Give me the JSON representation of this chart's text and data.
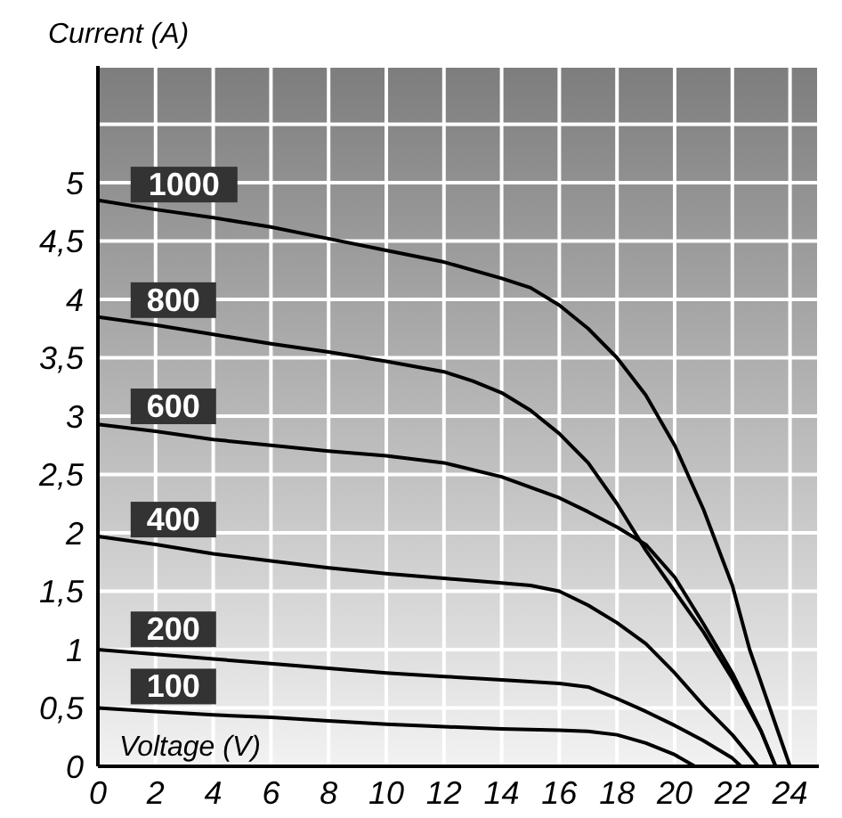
{
  "chart_data": {
    "type": "line",
    "xlabel": "Voltage (V)",
    "ylabel": "Current (A)",
    "xlim": [
      0,
      25
    ],
    "xticks": [
      0,
      2,
      4,
      6,
      8,
      10,
      12,
      14,
      16,
      18,
      20,
      22,
      24
    ],
    "ylim": [
      0,
      6
    ],
    "yticks": [
      0,
      {
        "value": 0.5,
        "label": "0,5"
      },
      1,
      {
        "value": 1.5,
        "label": "1,5"
      },
      2,
      {
        "value": 2.5,
        "label": "2,5"
      },
      3,
      {
        "value": 3.5,
        "label": "3,5"
      },
      4,
      {
        "value": 4.5,
        "label": "4,5"
      },
      5,
      {
        "value": 5.5,
        "label": null
      },
      {
        "value": 6,
        "label": null
      }
    ],
    "grid": true,
    "legend": false,
    "marker": "none",
    "line_style": "solid",
    "series": [
      {
        "name": "1000",
        "color": "#000000",
        "x": [
          0,
          2,
          4,
          6,
          8,
          10,
          12,
          14,
          15,
          16,
          17,
          18,
          19,
          20,
          21,
          22,
          22.6,
          23.3,
          24
        ],
        "values": [
          4.85,
          4.77,
          4.7,
          4.62,
          4.52,
          4.42,
          4.32,
          4.18,
          4.1,
          3.95,
          3.75,
          3.5,
          3.18,
          2.75,
          2.2,
          1.55,
          1.0,
          0.5,
          0
        ]
      },
      {
        "name": "800",
        "color": "#000000",
        "x": [
          0,
          2,
          4,
          6,
          8,
          10,
          12,
          13,
          14,
          15,
          16,
          17,
          18,
          19,
          20,
          21,
          22,
          23,
          23.5
        ],
        "values": [
          3.85,
          3.78,
          3.7,
          3.62,
          3.55,
          3.47,
          3.38,
          3.3,
          3.2,
          3.05,
          2.85,
          2.6,
          2.25,
          1.85,
          1.5,
          1.15,
          0.75,
          0.3,
          0
        ]
      },
      {
        "name": "600",
        "color": "#000000",
        "x": [
          0,
          2,
          4,
          6,
          8,
          10,
          12,
          14,
          16,
          17,
          18,
          19,
          20,
          21,
          22,
          23,
          23.5
        ],
        "values": [
          2.93,
          2.87,
          2.8,
          2.75,
          2.7,
          2.66,
          2.6,
          2.48,
          2.3,
          2.18,
          2.05,
          1.9,
          1.62,
          1.22,
          0.8,
          0.3,
          0
        ]
      },
      {
        "name": "400",
        "color": "#000000",
        "x": [
          0,
          2,
          4,
          6,
          8,
          10,
          12,
          14,
          15,
          16,
          17,
          18,
          19,
          20,
          21,
          22,
          22.9
        ],
        "values": [
          1.97,
          1.9,
          1.82,
          1.76,
          1.7,
          1.65,
          1.61,
          1.57,
          1.55,
          1.5,
          1.38,
          1.23,
          1.05,
          0.8,
          0.52,
          0.27,
          0
        ]
      },
      {
        "name": "200",
        "color": "#000000",
        "x": [
          0,
          2,
          4,
          6,
          8,
          10,
          12,
          14,
          16,
          17,
          18,
          19,
          20,
          21,
          22,
          22.3
        ],
        "values": [
          1.0,
          0.96,
          0.92,
          0.88,
          0.84,
          0.8,
          0.77,
          0.74,
          0.71,
          0.68,
          0.58,
          0.47,
          0.35,
          0.22,
          0.07,
          0
        ]
      },
      {
        "name": "100",
        "color": "#000000",
        "x": [
          0,
          2,
          4,
          6,
          8,
          10,
          12,
          14,
          16,
          17,
          18,
          19,
          20,
          20.7
        ],
        "values": [
          0.5,
          0.47,
          0.44,
          0.42,
          0.39,
          0.36,
          0.34,
          0.32,
          0.31,
          0.3,
          0.27,
          0.2,
          0.1,
          0
        ]
      }
    ]
  }
}
